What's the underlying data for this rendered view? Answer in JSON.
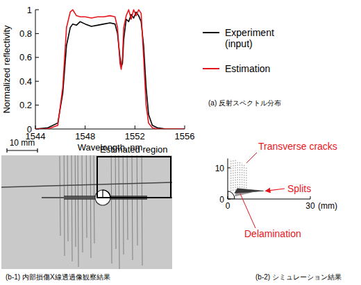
{
  "chart_data": [
    {
      "type": "line",
      "title": "(a) 反射スペクトル分布",
      "x_label": "Wavelength, nm",
      "y_label": "Normalized reflectivity",
      "x": [
        1544,
        1545,
        1545.8,
        1546.2,
        1546.5,
        1546.8,
        1547.0,
        1547.3,
        1547.6,
        1548,
        1548.5,
        1549,
        1549.5,
        1550,
        1550.4,
        1550.6,
        1550.8,
        1550.9,
        1551.0,
        1551.1,
        1551.3,
        1551.5,
        1551.7,
        1551.9,
        1552.1,
        1552.3,
        1552.5,
        1552.7,
        1552.9,
        1553.1,
        1553.4,
        1553.8,
        1554.5,
        1555.5,
        1556
      ],
      "series": [
        {
          "name": "Experiment (input)",
          "color": "#000000",
          "values": [
            0,
            0.01,
            0.05,
            0.3,
            0.7,
            0.85,
            0.88,
            0.87,
            0.9,
            0.88,
            0.86,
            0.87,
            0.88,
            0.89,
            0.88,
            0.8,
            0.6,
            0.52,
            0.55,
            0.75,
            0.92,
            0.9,
            0.96,
            0.93,
            0.98,
            0.95,
            0.9,
            0.7,
            0.35,
            0.12,
            0.03,
            0.01,
            0,
            0,
            0
          ]
        },
        {
          "name": "Estimation",
          "color": "#e8141b",
          "values": [
            0,
            0,
            0.03,
            0.35,
            0.85,
            0.98,
            1.0,
            0.95,
            0.94,
            0.94,
            0.93,
            0.94,
            0.94,
            0.95,
            0.94,
            0.85,
            0.55,
            0.5,
            0.6,
            0.85,
            0.95,
            1.0,
            0.92,
            1.0,
            0.95,
            1.0,
            0.97,
            0.6,
            0.2,
            0.05,
            0.01,
            0,
            0,
            0,
            0
          ]
        }
      ],
      "xlim": [
        1544,
        1556
      ],
      "xticks": [
        1544,
        1548,
        1552,
        1556
      ],
      "ylim": [
        0,
        1
      ],
      "yticks": [
        0,
        0.2,
        0.4,
        0.6,
        0.8,
        1
      ],
      "legend": "right"
    },
    {
      "type": "diagram",
      "title": "(b-2) シミュレーション結果",
      "x_unit": "(mm)",
      "xlim": [
        0,
        30
      ],
      "xticks": [
        0,
        30
      ],
      "ylim": [
        0,
        13
      ],
      "yticks": [
        0,
        10
      ],
      "hole_radius": 2.5,
      "transverse_cracks": {
        "x": [
          1.2,
          2.0,
          2.8,
          3.6,
          4.4,
          5.2,
          6.0,
          6.8
        ],
        "y_from": [
          2.6,
          2.7,
          2.8,
          2.9,
          2.9,
          2.9,
          2.8,
          2.7
        ],
        "y_to": [
          12.5,
          12.5,
          12.5,
          12.2,
          12.0,
          11.6,
          11.0,
          10.2
        ]
      },
      "splits": {
        "x": [
          2.5,
          3.5,
          8,
          13,
          8,
          3.5,
          2.5
        ],
        "y": [
          1.9,
          3.4,
          3.0,
          2.6,
          2.2,
          2.0,
          1.9
        ]
      },
      "delamination": {
        "x": [
          2.4,
          3.2,
          7,
          9,
          2.4
        ],
        "y": [
          0.8,
          2.4,
          2.4,
          2.1,
          0.8
        ]
      },
      "annotations": [
        {
          "text": "Transverse cracks",
          "color": "#e8141b"
        },
        {
          "text": "Splits",
          "color": "#e8141b"
        },
        {
          "text": "Delamination",
          "color": "#e8141b"
        }
      ]
    }
  ],
  "xray_panel": {
    "caption": "(b-1) 内部損傷X線透過像観察結果",
    "scale_bar": "10 mm",
    "box_label": "Estimated region"
  }
}
